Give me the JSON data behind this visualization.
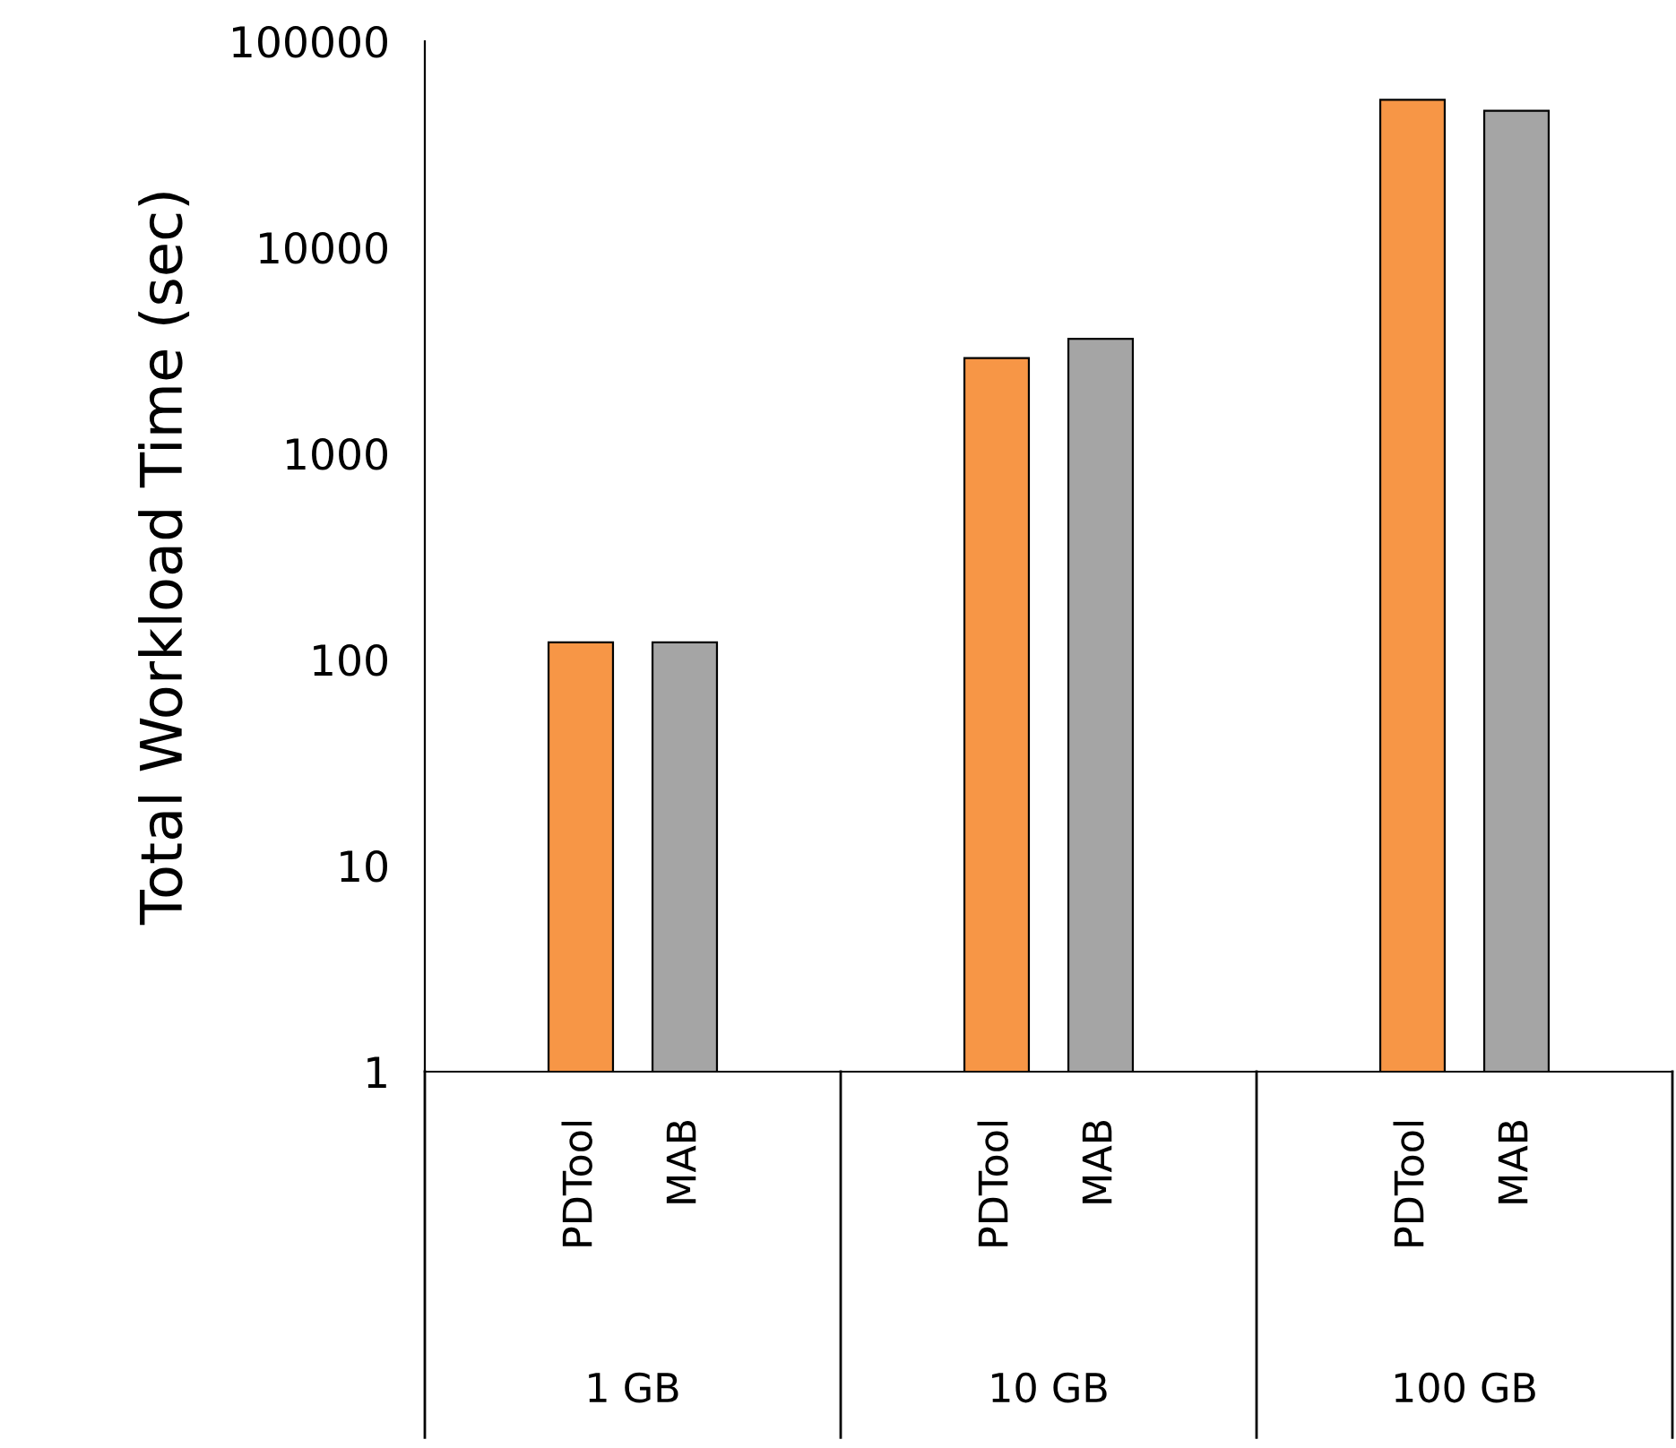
{
  "chart_data": {
    "type": "bar",
    "ylabel": "Total Workload Time (sec)",
    "categories": [
      "1 GB",
      "10 GB",
      "100 GB"
    ],
    "series": [
      {
        "name": "PDTool",
        "color": "#f79646",
        "values": [
          120,
          2900,
          52000
        ]
      },
      {
        "name": "MAB",
        "color": "#a5a5a5",
        "values": [
          120,
          3600,
          46000
        ]
      }
    ],
    "log": true,
    "ylim": [
      1,
      100000
    ],
    "yticks": [
      1,
      10,
      100,
      1000,
      10000,
      100000
    ],
    "grid": false
  }
}
